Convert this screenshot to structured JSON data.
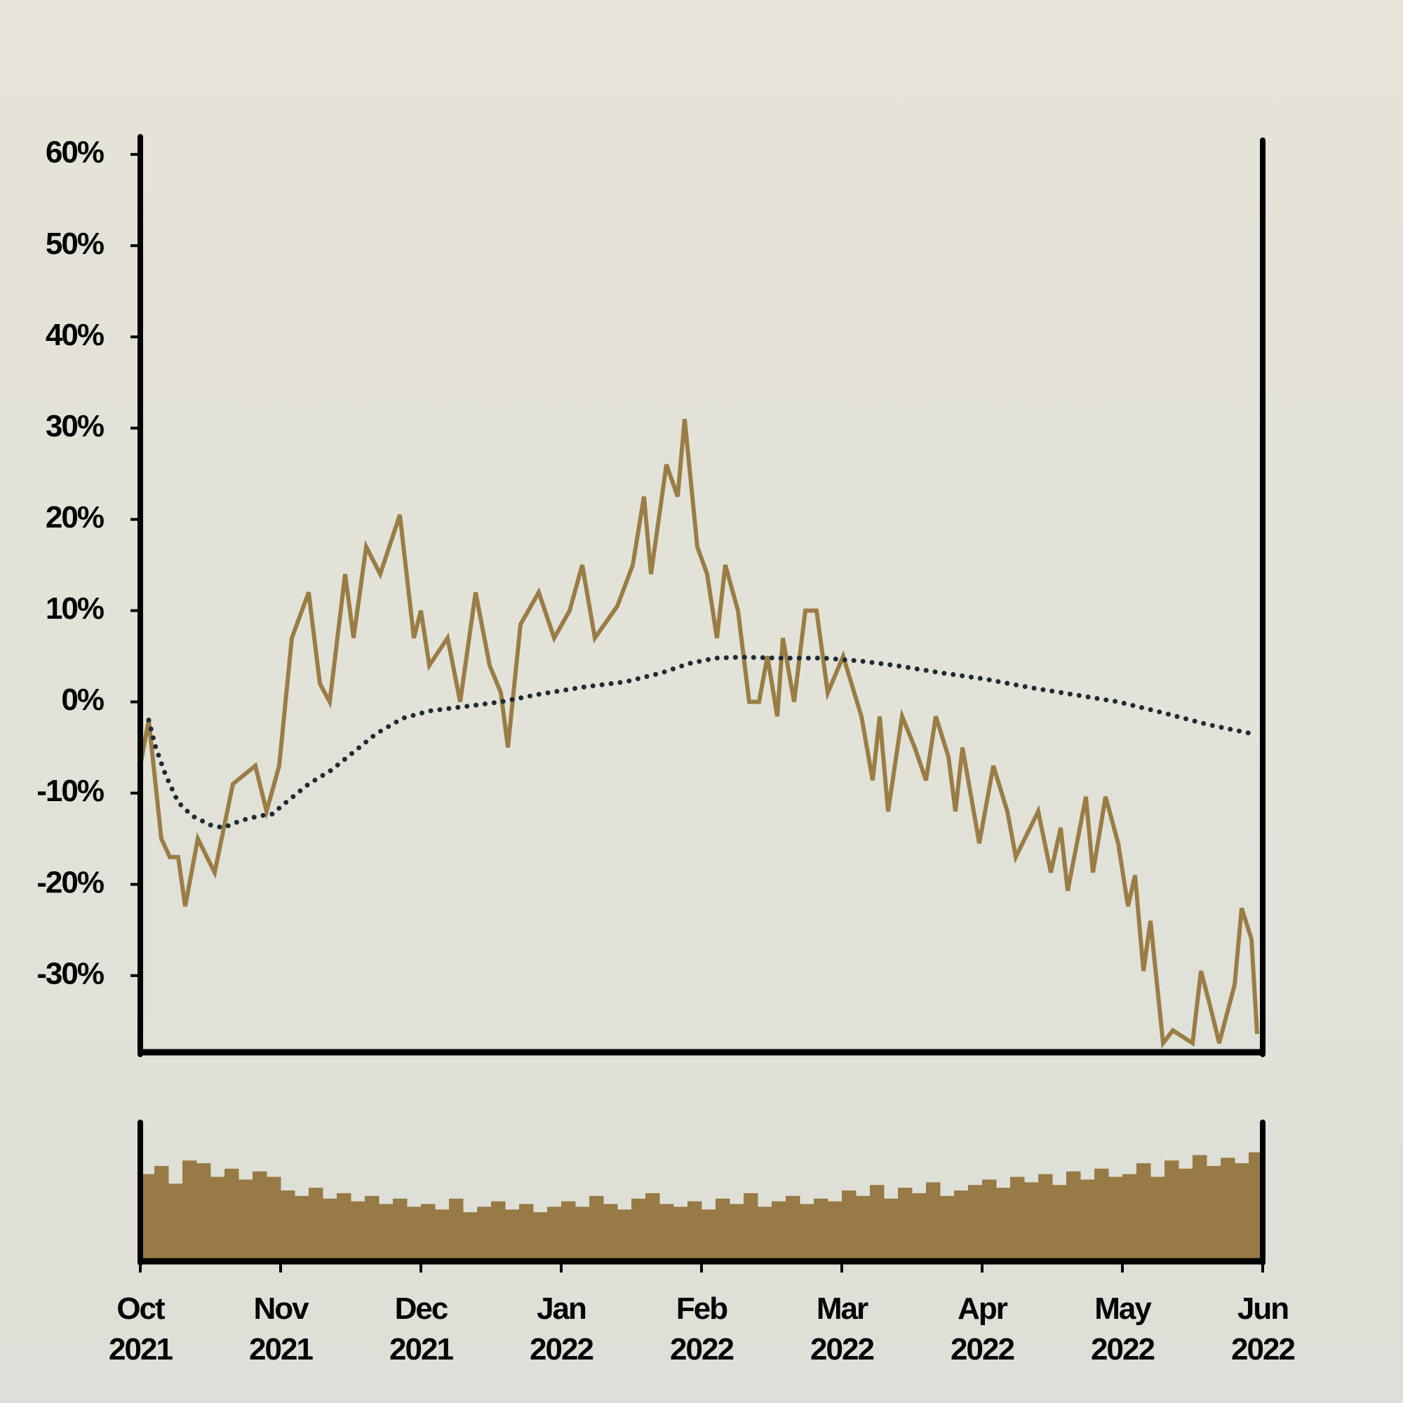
{
  "chart_data": [
    {
      "type": "line",
      "xlim": [
        0,
        8
      ],
      "ylim": [
        -38.4,
        61.7
      ],
      "yticks": [
        {
          "value": -30,
          "label": "-30%"
        },
        {
          "value": -20,
          "label": "-20%"
        },
        {
          "value": -10,
          "label": "-10%"
        },
        {
          "value": 0,
          "label": "0%"
        },
        {
          "value": 10,
          "label": "10%"
        },
        {
          "value": 20,
          "label": "20%"
        },
        {
          "value": 30,
          "label": "30%"
        },
        {
          "value": 40,
          "label": "40%"
        },
        {
          "value": 50,
          "label": "50%"
        },
        {
          "value": 60,
          "label": "60%"
        }
      ],
      "series": [
        {
          "color": "#9a7d45",
          "style": "solid",
          "x": [
            0,
            0.06,
            0.15,
            0.21,
            0.27,
            0.32,
            0.41,
            0.53,
            0.66,
            0.82,
            0.9,
            0.99,
            1.08,
            1.2,
            1.28,
            1.35,
            1.46,
            1.52,
            1.61,
            1.71,
            1.85,
            1.95,
            2.0,
            2.06,
            2.19,
            2.28,
            2.39,
            2.49,
            2.57,
            2.62,
            2.71,
            2.84,
            2.95,
            3.06,
            3.15,
            3.24,
            3.4,
            3.51,
            3.59,
            3.64,
            3.75,
            3.83,
            3.88,
            3.97,
            4.04,
            4.11,
            4.17,
            4.26,
            4.34,
            4.41,
            4.47,
            4.54,
            4.58,
            4.66,
            4.74,
            4.82,
            4.9,
            5.01,
            5.14,
            5.22,
            5.27,
            5.33,
            5.43,
            5.52,
            5.6,
            5.67,
            5.76,
            5.81,
            5.86,
            5.98,
            6.08,
            6.18,
            6.24,
            6.4,
            6.49,
            6.56,
            6.61,
            6.74,
            6.79,
            6.88,
            6.97,
            7.04,
            7.09,
            7.15,
            7.2,
            7.29,
            7.36,
            7.5,
            7.56,
            7.62,
            7.69,
            7.8,
            7.85,
            7.92,
            7.96
          ],
          "values": [
            -7,
            -2,
            -15,
            -17,
            -17,
            -22.4,
            -15,
            -18.7,
            -9,
            -7,
            -12,
            -7,
            7,
            12,
            2,
            0,
            14,
            7,
            17,
            14,
            20.5,
            7,
            10,
            4,
            7,
            0,
            12,
            4,
            1,
            -5,
            8.5,
            12,
            7,
            10,
            15,
            7,
            10.5,
            15,
            22.5,
            14,
            26,
            22.5,
            31,
            17,
            14,
            7,
            15,
            10,
            0,
            0,
            5,
            -1.6,
            7,
            0,
            10,
            10,
            1,
            5,
            -1.6,
            -8.6,
            -1.6,
            -12,
            -1.6,
            -5,
            -8.6,
            -1.6,
            -6,
            -12,
            -5,
            -15.5,
            -7,
            -12,
            -17,
            -12,
            -18.7,
            -13.8,
            -20.7,
            -10.4,
            -18.7,
            -10.4,
            -15.5,
            -22.4,
            -19,
            -29.5,
            -24,
            -37.4,
            -36,
            -37.4,
            -29.5,
            -33,
            -37.4,
            -31,
            -22.6,
            -26,
            -36.4
          ]
        },
        {
          "color": "#1f2b33",
          "style": "dotted",
          "x": [
            0.06,
            0.11,
            0.18,
            0.27,
            0.37,
            0.5,
            0.59,
            0.72,
            0.85,
            0.94,
            1.04,
            1.2,
            1.36,
            1.52,
            1.68,
            1.87,
            2.06,
            2.32,
            2.57,
            2.83,
            3.15,
            3.46,
            3.72,
            3.91,
            4.1,
            4.29,
            4.55,
            4.87,
            5.12,
            5.38,
            5.7,
            6.02,
            6.33,
            6.65,
            6.97,
            7.29,
            7.61,
            7.93
          ],
          "values": [
            -2,
            -5,
            -8,
            -11,
            -12.5,
            -13.5,
            -13.8,
            -13,
            -12.5,
            -12.3,
            -11,
            -9,
            -7.5,
            -5.5,
            -3.5,
            -1.8,
            -1,
            -0.5,
            0,
            0.8,
            1.6,
            2.2,
            3.2,
            4.2,
            4.8,
            4.9,
            4.8,
            4.8,
            4.5,
            4,
            3.2,
            2.5,
            1.6,
            0.8,
            0,
            -1.2,
            -2.5,
            -3.5
          ]
        }
      ]
    },
    {
      "type": "bar",
      "color": "#977a45",
      "xlim": [
        0,
        8
      ],
      "ylim": [
        0,
        100
      ],
      "xticks": [
        {
          "value": 0,
          "label": "Oct\n2021"
        },
        {
          "value": 1,
          "label": "Nov\n2021"
        },
        {
          "value": 2,
          "label": "Dec\n2021"
        },
        {
          "value": 3,
          "label": "Jan\n2022"
        },
        {
          "value": 4,
          "label": "Feb\n2022"
        },
        {
          "value": 5,
          "label": "Mar\n2022"
        },
        {
          "value": 6,
          "label": "Apr\n2022"
        },
        {
          "value": 7,
          "label": "May\n2022"
        },
        {
          "value": 8,
          "label": "Jun\n2022"
        }
      ],
      "x": [
        0.05,
        0.15,
        0.25,
        0.35,
        0.45,
        0.55,
        0.65,
        0.75,
        0.85,
        0.95,
        1.05,
        1.15,
        1.25,
        1.35,
        1.45,
        1.55,
        1.65,
        1.75,
        1.85,
        1.95,
        2.05,
        2.15,
        2.25,
        2.35,
        2.45,
        2.55,
        2.65,
        2.75,
        2.85,
        2.95,
        3.05,
        3.15,
        3.25,
        3.35,
        3.45,
        3.55,
        3.65,
        3.75,
        3.85,
        3.95,
        4.05,
        4.15,
        4.25,
        4.35,
        4.45,
        4.55,
        4.65,
        4.75,
        4.85,
        4.95,
        5.05,
        5.15,
        5.25,
        5.35,
        5.45,
        5.55,
        5.65,
        5.75,
        5.85,
        5.95,
        6.05,
        6.15,
        6.25,
        6.35,
        6.45,
        6.55,
        6.65,
        6.75,
        6.85,
        6.95,
        7.05,
        7.15,
        7.25,
        7.35,
        7.45,
        7.55,
        7.65,
        7.75,
        7.85,
        7.95
      ],
      "values": [
        62,
        68,
        55,
        72,
        70,
        60,
        66,
        58,
        64,
        60,
        50,
        46,
        52,
        44,
        48,
        42,
        46,
        40,
        44,
        38,
        40,
        36,
        44,
        34,
        38,
        42,
        36,
        40,
        34,
        38,
        42,
        38,
        46,
        40,
        36,
        44,
        48,
        40,
        38,
        42,
        36,
        44,
        40,
        48,
        38,
        42,
        46,
        40,
        44,
        42,
        50,
        46,
        54,
        44,
        52,
        48,
        56,
        46,
        50,
        54,
        58,
        52,
        60,
        56,
        62,
        54,
        64,
        58,
        66,
        60,
        62,
        70,
        60,
        72,
        66,
        76,
        68,
        74,
        70,
        78
      ]
    }
  ]
}
